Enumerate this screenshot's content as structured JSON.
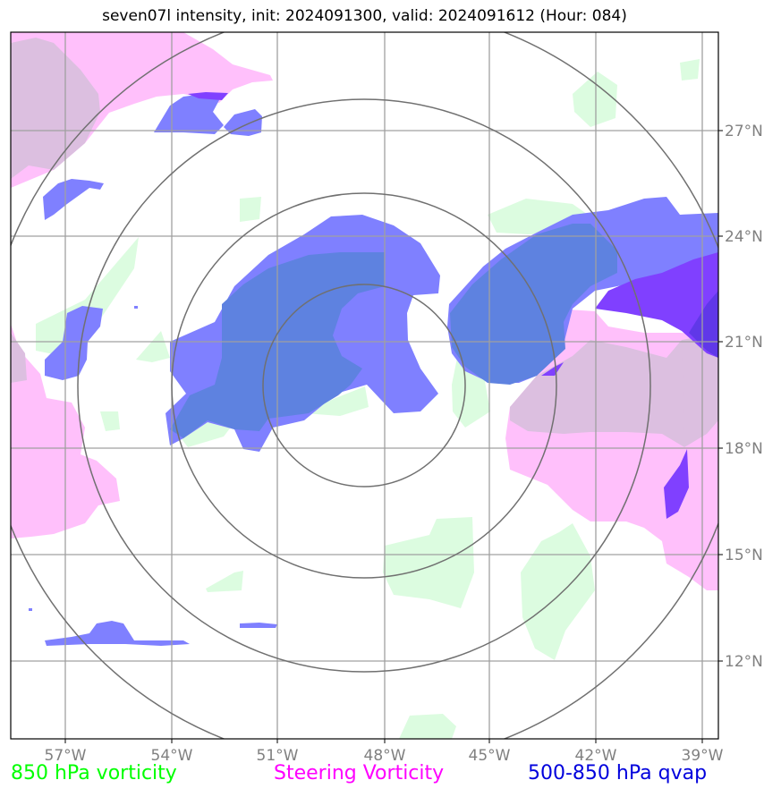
{
  "title": "seven07l intensity, init: 2024091300, valid: 2024091612 (Hour: 084)",
  "longitude_labels": [
    "57°W",
    "54°W",
    "51°W",
    "48°W",
    "45°W",
    "42°W",
    "39°W"
  ],
  "latitude_labels": [
    "27°N",
    "24°N",
    "21°N",
    "18°N",
    "15°N",
    "12°N"
  ],
  "legend": [
    {
      "label": "850 hPa vorticity",
      "color": "#00ff00"
    },
    {
      "label": "Steering Vorticity",
      "color": "#ff00ff"
    },
    {
      "label": "500-850 hPa qvap",
      "color": "#0000dd"
    }
  ],
  "colors": {
    "vorticity_850": "#dcfce0",
    "steering_vorticity": "#ffc0fb",
    "qvap": "#7f80ff",
    "overlap_blue": "#5e82e0",
    "strong_qvap": "#8040ff",
    "grid": "#a0a0a0",
    "range_rings": "#707070"
  }
}
